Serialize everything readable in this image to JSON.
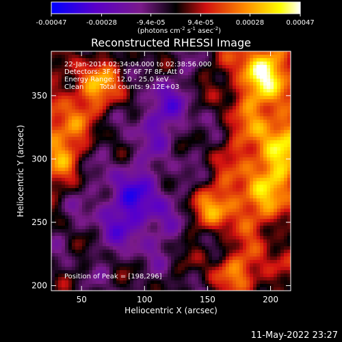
{
  "colorbar": {
    "tick_labels": [
      "-0.00047",
      "-0.00028",
      "-9.4e-05",
      "9.4e-05",
      "0.00028",
      "0.00047"
    ],
    "tick_values": [
      -0.00047,
      -0.00028,
      -9.4e-05,
      9.4e-05,
      0.00028,
      0.00047
    ],
    "range": [
      -0.00047,
      0.00047
    ],
    "units_prefix": "(photons cm",
    "units_sup1": "-2",
    "units_mid": " s",
    "units_sup2": "-1",
    "units_mid2": " asec",
    "units_sup3": "-2",
    "units_suffix": ")",
    "colormap_stops": [
      "#0000ff",
      "#5a00c8",
      "#7a1a8a",
      "#000000",
      "#d01010",
      "#ff8c00",
      "#ffff00",
      "#ffffff"
    ]
  },
  "chart_data": {
    "type": "heatmap",
    "title": "Reconstructed RHESSI Image",
    "xlabel": "Heliocentric X (arcsec)",
    "ylabel": "Heliocentric Y (arcsec)",
    "xlim": [
      26,
      216
    ],
    "ylim": [
      196,
      385
    ],
    "x_ticks": [
      50,
      100,
      150,
      200
    ],
    "y_ticks": [
      200,
      250,
      300,
      350
    ],
    "annotations": {
      "time_range": "22-Jan-2014 02:34:04.000 to 02:38:56.000",
      "detectors": "Detectors: 3F 4F 5F 6F 7F 8F, Att 0",
      "energy_range": "Energy Range: 12.0 - 25.0 keV",
      "clean_label": "Clean",
      "total_counts": "Total counts: 9.12E+03",
      "peak": "Position of Peak = [198,296]"
    },
    "peak_position": [
      198,
      296
    ]
  },
  "footer": {
    "date": "11-May-2022 23:27"
  }
}
